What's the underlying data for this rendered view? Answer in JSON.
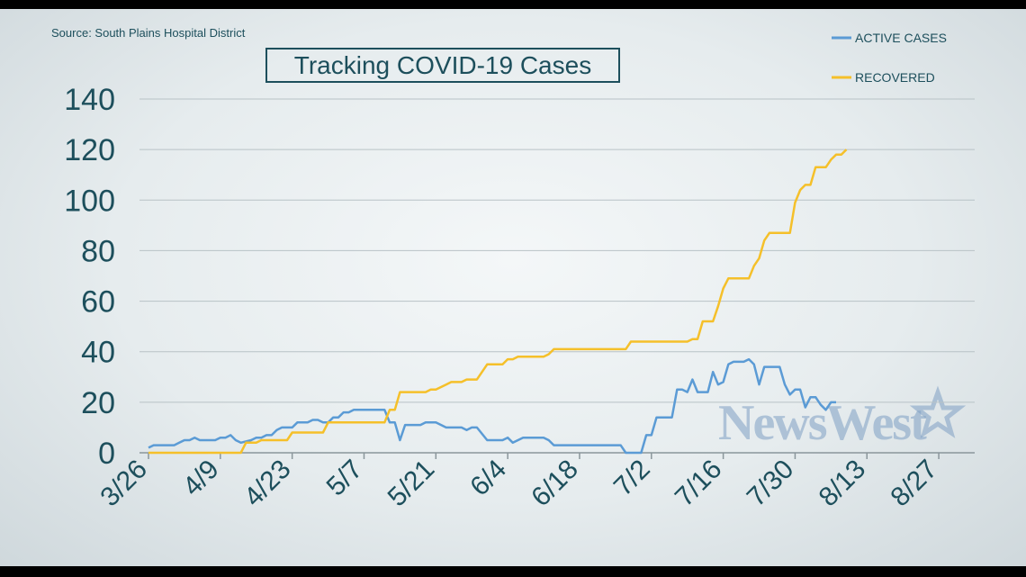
{
  "chart_data": {
    "type": "line",
    "title": "Tracking COVID-19 Cases",
    "source": "Source: South Plains Hospital District",
    "watermark": "NewsWest",
    "x_tick_labels": [
      "3/26",
      "4/9",
      "4/23",
      "5/7",
      "5/21",
      "6/4",
      "6/18",
      "7/2",
      "7/16",
      "7/30",
      "8/13",
      "8/27"
    ],
    "y_tick_labels": [
      "0",
      "20",
      "40",
      "60",
      "80",
      "100",
      "120",
      "140"
    ],
    "ylim": [
      0,
      140
    ],
    "xlim": [
      "2020-03-26",
      "2020-09-03"
    ],
    "grid": true,
    "legend_position": "top-right",
    "colors": {
      "active": "#5b9bd5",
      "recovered": "#f5c02a",
      "text": "#1d4f5c",
      "grid": "#b8c2c6"
    },
    "series": [
      {
        "name": "ACTIVE CASES",
        "color": "#5b9bd5",
        "points": [
          [
            "2020-03-26",
            2
          ],
          [
            "2020-03-27",
            3
          ],
          [
            "2020-03-31",
            3
          ],
          [
            "2020-04-01",
            4
          ],
          [
            "2020-04-02",
            5
          ],
          [
            "2020-04-03",
            5
          ],
          [
            "2020-04-04",
            6
          ],
          [
            "2020-04-05",
            5
          ],
          [
            "2020-04-08",
            5
          ],
          [
            "2020-04-09",
            6
          ],
          [
            "2020-04-10",
            6
          ],
          [
            "2020-04-11",
            7
          ],
          [
            "2020-04-12",
            5
          ],
          [
            "2020-04-13",
            4
          ],
          [
            "2020-04-15",
            5
          ],
          [
            "2020-04-16",
            6
          ],
          [
            "2020-04-17",
            6
          ],
          [
            "2020-04-18",
            7
          ],
          [
            "2020-04-19",
            7
          ],
          [
            "2020-04-20",
            9
          ],
          [
            "2020-04-21",
            10
          ],
          [
            "2020-04-23",
            10
          ],
          [
            "2020-04-24",
            12
          ],
          [
            "2020-04-26",
            12
          ],
          [
            "2020-04-27",
            13
          ],
          [
            "2020-04-28",
            13
          ],
          [
            "2020-04-29",
            12
          ],
          [
            "2020-04-30",
            12
          ],
          [
            "2020-05-01",
            14
          ],
          [
            "2020-05-02",
            14
          ],
          [
            "2020-05-03",
            16
          ],
          [
            "2020-05-04",
            16
          ],
          [
            "2020-05-05",
            17
          ],
          [
            "2020-05-11",
            17
          ],
          [
            "2020-05-12",
            12
          ],
          [
            "2020-05-13",
            12
          ],
          [
            "2020-05-14",
            5
          ],
          [
            "2020-05-15",
            11
          ],
          [
            "2020-05-18",
            11
          ],
          [
            "2020-05-19",
            12
          ],
          [
            "2020-05-21",
            12
          ],
          [
            "2020-05-23",
            10
          ],
          [
            "2020-05-26",
            10
          ],
          [
            "2020-05-27",
            9
          ],
          [
            "2020-05-28",
            10
          ],
          [
            "2020-05-29",
            10
          ],
          [
            "2020-05-31",
            5
          ],
          [
            "2020-06-03",
            5
          ],
          [
            "2020-06-04",
            6
          ],
          [
            "2020-06-05",
            4
          ],
          [
            "2020-06-06",
            5
          ],
          [
            "2020-06-07",
            6
          ],
          [
            "2020-06-11",
            6
          ],
          [
            "2020-06-12",
            5
          ],
          [
            "2020-06-13",
            3
          ],
          [
            "2020-06-26",
            3
          ],
          [
            "2020-06-27",
            0
          ],
          [
            "2020-06-30",
            0
          ],
          [
            "2020-07-01",
            7
          ],
          [
            "2020-07-02",
            7
          ],
          [
            "2020-07-03",
            14
          ],
          [
            "2020-07-06",
            14
          ],
          [
            "2020-07-07",
            25
          ],
          [
            "2020-07-08",
            25
          ],
          [
            "2020-07-09",
            24
          ],
          [
            "2020-07-10",
            29
          ],
          [
            "2020-07-11",
            24
          ],
          [
            "2020-07-13",
            24
          ],
          [
            "2020-07-14",
            32
          ],
          [
            "2020-07-15",
            27
          ],
          [
            "2020-07-16",
            28
          ],
          [
            "2020-07-17",
            35
          ],
          [
            "2020-07-18",
            36
          ],
          [
            "2020-07-20",
            36
          ],
          [
            "2020-07-21",
            37
          ],
          [
            "2020-07-22",
            35
          ],
          [
            "2020-07-23",
            27
          ],
          [
            "2020-07-24",
            34
          ],
          [
            "2020-07-27",
            34
          ],
          [
            "2020-07-28",
            27
          ],
          [
            "2020-07-29",
            23
          ],
          [
            "2020-07-30",
            25
          ],
          [
            "2020-07-31",
            25
          ],
          [
            "2020-08-01",
            18
          ],
          [
            "2020-08-02",
            22
          ],
          [
            "2020-08-03",
            22
          ],
          [
            "2020-08-04",
            19
          ],
          [
            "2020-08-05",
            17
          ],
          [
            "2020-08-06",
            20
          ],
          [
            "2020-08-07",
            20
          ]
        ]
      },
      {
        "name": "RECOVERED",
        "color": "#f5c02a",
        "points": [
          [
            "2020-03-26",
            0
          ],
          [
            "2020-04-13",
            0
          ],
          [
            "2020-04-14",
            4
          ],
          [
            "2020-04-16",
            4
          ],
          [
            "2020-04-17",
            5
          ],
          [
            "2020-04-22",
            5
          ],
          [
            "2020-04-23",
            8
          ],
          [
            "2020-04-29",
            8
          ],
          [
            "2020-04-30",
            12
          ],
          [
            "2020-05-11",
            12
          ],
          [
            "2020-05-12",
            17
          ],
          [
            "2020-05-13",
            17
          ],
          [
            "2020-05-14",
            24
          ],
          [
            "2020-05-19",
            24
          ],
          [
            "2020-05-20",
            25
          ],
          [
            "2020-05-21",
            25
          ],
          [
            "2020-05-22",
            26
          ],
          [
            "2020-05-23",
            27
          ],
          [
            "2020-05-24",
            28
          ],
          [
            "2020-05-26",
            28
          ],
          [
            "2020-05-27",
            29
          ],
          [
            "2020-05-29",
            29
          ],
          [
            "2020-05-30",
            32
          ],
          [
            "2020-05-31",
            35
          ],
          [
            "2020-06-03",
            35
          ],
          [
            "2020-06-04",
            37
          ],
          [
            "2020-06-05",
            37
          ],
          [
            "2020-06-06",
            38
          ],
          [
            "2020-06-11",
            38
          ],
          [
            "2020-06-12",
            39
          ],
          [
            "2020-06-13",
            41
          ],
          [
            "2020-06-27",
            41
          ],
          [
            "2020-06-28",
            44
          ],
          [
            "2020-07-09",
            44
          ],
          [
            "2020-07-10",
            45
          ],
          [
            "2020-07-11",
            45
          ],
          [
            "2020-07-12",
            52
          ],
          [
            "2020-07-14",
            52
          ],
          [
            "2020-07-15",
            58
          ],
          [
            "2020-07-16",
            65
          ],
          [
            "2020-07-17",
            69
          ],
          [
            "2020-07-21",
            69
          ],
          [
            "2020-07-22",
            74
          ],
          [
            "2020-07-23",
            77
          ],
          [
            "2020-07-24",
            84
          ],
          [
            "2020-07-25",
            87
          ],
          [
            "2020-07-29",
            87
          ],
          [
            "2020-07-30",
            99
          ],
          [
            "2020-07-31",
            104
          ],
          [
            "2020-08-01",
            106
          ],
          [
            "2020-08-02",
            106
          ],
          [
            "2020-08-03",
            113
          ],
          [
            "2020-08-05",
            113
          ],
          [
            "2020-08-06",
            116
          ],
          [
            "2020-08-07",
            118
          ],
          [
            "2020-08-08",
            118
          ],
          [
            "2020-08-09",
            120
          ]
        ]
      }
    ]
  }
}
